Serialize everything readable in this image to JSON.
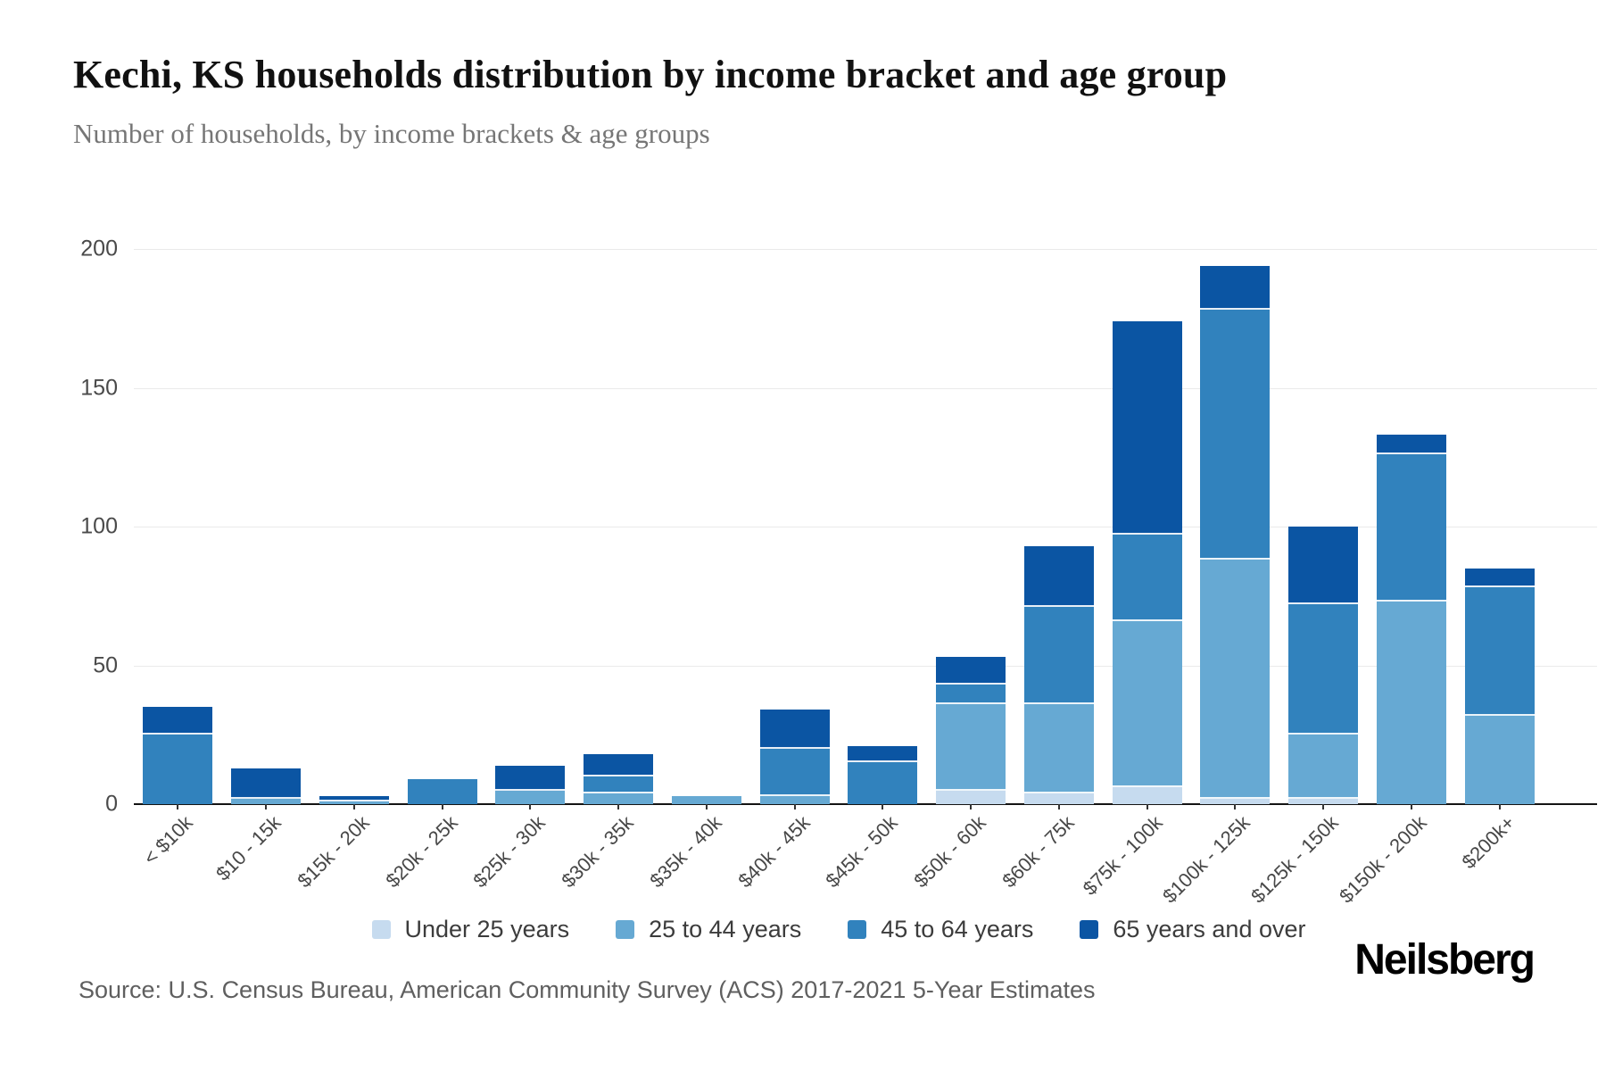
{
  "header": {
    "title": "Kechi, KS households distribution by income bracket and age group",
    "subtitle": "Number of households, by income brackets & age groups"
  },
  "chart_data": {
    "type": "bar",
    "stacked": true,
    "title": "Kechi, KS households distribution by income bracket and age group",
    "xlabel": "",
    "ylabel": "",
    "ylim": [
      0,
      200
    ],
    "yticks": [
      0,
      50,
      100,
      150,
      200
    ],
    "grid": true,
    "legend_position": "bottom",
    "categories": [
      "< $10k",
      "$10 - 15k",
      "$15k - 20k",
      "$20k - 25k",
      "$25k - 30k",
      "$30k - 35k",
      "$35k - 40k",
      "$40k - 45k",
      "$45k - 50k",
      "$50k - 60k",
      "$60k - 75k",
      "$75k - 100k",
      "$100k - 125k",
      "$125k - 150k",
      "$150k - 200k",
      "$200k+"
    ],
    "series": [
      {
        "name": "Under 25 years",
        "color": "#c6dbef",
        "values": [
          0,
          0,
          0,
          0,
          0,
          0,
          0,
          0,
          0,
          5,
          4,
          6,
          2,
          2,
          0,
          0
        ]
      },
      {
        "name": "25 to 44 years",
        "color": "#66a9d3",
        "values": [
          0,
          2,
          1,
          0,
          5,
          4,
          3,
          3,
          0,
          31,
          32,
          60,
          86,
          23,
          73,
          32
        ]
      },
      {
        "name": "45 to 64 years",
        "color": "#3182bd",
        "values": [
          25,
          0,
          0,
          9,
          0,
          6,
          0,
          17,
          15,
          7,
          35,
          31,
          90,
          47,
          53,
          46
        ]
      },
      {
        "name": "65 years and over",
        "color": "#0b55a3",
        "values": [
          10,
          11,
          2,
          0,
          9,
          8,
          0,
          14,
          6,
          10,
          22,
          77,
          16,
          28,
          7,
          7
        ]
      }
    ],
    "totals": [
      35,
      13,
      3,
      9,
      14,
      18,
      3,
      34,
      21,
      53,
      93,
      174,
      194,
      100,
      133,
      85
    ]
  },
  "footer": {
    "source": "Source: U.S. Census Bureau, American Community Survey (ACS) 2017-2021 5-Year Estimates",
    "brand": "Neilsberg"
  }
}
